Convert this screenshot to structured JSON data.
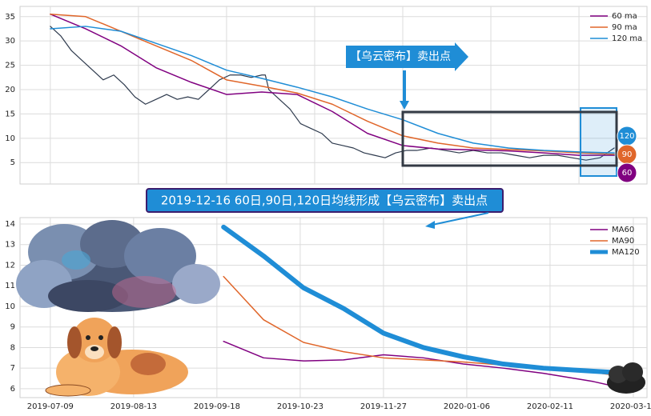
{
  "chart_data": [
    {
      "type": "line",
      "xlim": [
        -8.6,
        169.3
      ],
      "xticks": [
        0,
        25,
        50,
        75,
        100,
        125,
        150
      ],
      "ylim": [
        0.6,
        37.1
      ],
      "yticks": [
        5,
        10,
        15,
        20,
        25,
        30,
        35
      ],
      "grid": true,
      "legend": "upper right",
      "x": [
        0,
        10,
        20,
        30,
        40,
        50,
        60,
        70,
        80,
        90,
        100,
        110,
        120,
        130,
        140,
        150,
        160
      ],
      "series": [
        {
          "name": "60 ma",
          "color": "#800080",
          "width": 1.5,
          "values": [
            35.5,
            32.5,
            29,
            24.5,
            21.5,
            19,
            19.5,
            19,
            15.5,
            11,
            8.5,
            7.8,
            7.6,
            7.4,
            7.0,
            6.5,
            6.5
          ]
        },
        {
          "name": "90 ma",
          "color": "#e0662a",
          "width": 1.5,
          "values": [
            35.5,
            35,
            32,
            29,
            26,
            22,
            20.7,
            19.3,
            17,
            13.5,
            10.5,
            9,
            8,
            7.7,
            7.4,
            7.0,
            6.7
          ]
        },
        {
          "name": "120 ma",
          "color": "#1f8dd6",
          "width": 1.5,
          "values": [
            32.5,
            33,
            32,
            29.5,
            27,
            24,
            22.3,
            20.5,
            18.5,
            16,
            13.8,
            11,
            9,
            8,
            7.5,
            7.2,
            7.0
          ]
        }
      ],
      "price": {
        "color": "#2e3a4d",
        "x": [
          0,
          3,
          6,
          9,
          12,
          15,
          18,
          21,
          24,
          27,
          30,
          33,
          36,
          39,
          42,
          45,
          48,
          51,
          54,
          57,
          60,
          61,
          62,
          65,
          68,
          71,
          74,
          77,
          80,
          83,
          86,
          89,
          92,
          95,
          98,
          101,
          104,
          108,
          112,
          116,
          120,
          124,
          128,
          132,
          136,
          140,
          144,
          148,
          152,
          156,
          160
        ],
        "values": [
          33,
          31,
          28,
          26,
          24,
          22,
          23,
          21,
          18.5,
          17,
          18,
          19,
          18,
          18.5,
          18,
          20,
          22,
          23,
          23,
          22.5,
          23,
          23,
          20,
          18,
          16,
          13,
          12,
          11,
          9,
          8.5,
          8,
          7,
          6.5,
          6,
          7,
          7.5,
          7.5,
          8,
          7.5,
          7,
          7.5,
          7,
          7,
          6.5,
          6,
          6.5,
          6.5,
          6,
          5.5,
          6,
          8
        ]
      },
      "annotations": [
        "【乌云密布】卖出点",
        "2019-12-16 60日,90日,120日均线形成【乌云密布】卖出点"
      ],
      "end_labels": [
        "120",
        "90",
        "60"
      ]
    },
    {
      "type": "line",
      "xlim": [
        -9.1,
        179.1
      ],
      "xticks": [
        {
          "value": 0,
          "label": "2019-07-09"
        },
        {
          "value": 25,
          "label": "2019-08-13"
        },
        {
          "value": 50,
          "label": "2019-09-18"
        },
        {
          "value": 75,
          "label": "2019-10-23"
        },
        {
          "value": 100,
          "label": "2019-11-27"
        },
        {
          "value": 125,
          "label": "2020-01-06"
        },
        {
          "value": 150,
          "label": "2020-02-11"
        },
        {
          "value": 175,
          "label": "2020-03-13"
        }
      ],
      "ylim": [
        5.57,
        14.31
      ],
      "yticks": [
        6,
        7,
        8,
        9,
        10,
        11,
        12,
        13,
        14
      ],
      "grid": true,
      "legend": "upper right",
      "x": [
        52,
        64,
        76,
        88,
        100,
        112,
        124,
        136,
        148,
        163,
        174
      ],
      "series": [
        {
          "name": "MA60",
          "color": "#800080",
          "width": 1.5,
          "values": [
            8.3,
            7.5,
            7.35,
            7.4,
            7.65,
            7.5,
            7.2,
            7.0,
            6.75,
            6.35,
            5.95
          ]
        },
        {
          "name": "MA90",
          "color": "#e0662a",
          "width": 1.5,
          "values": [
            11.45,
            9.35,
            8.25,
            7.8,
            7.5,
            7.4,
            7.3,
            7.15,
            7.0,
            6.8,
            6.55
          ]
        },
        {
          "name": "MA120",
          "color": "#1f8dd6",
          "width": 6,
          "values": [
            13.85,
            12.45,
            10.9,
            9.9,
            8.7,
            8.0,
            7.55,
            7.2,
            7.0,
            6.85,
            6.75
          ]
        }
      ]
    }
  ]
}
